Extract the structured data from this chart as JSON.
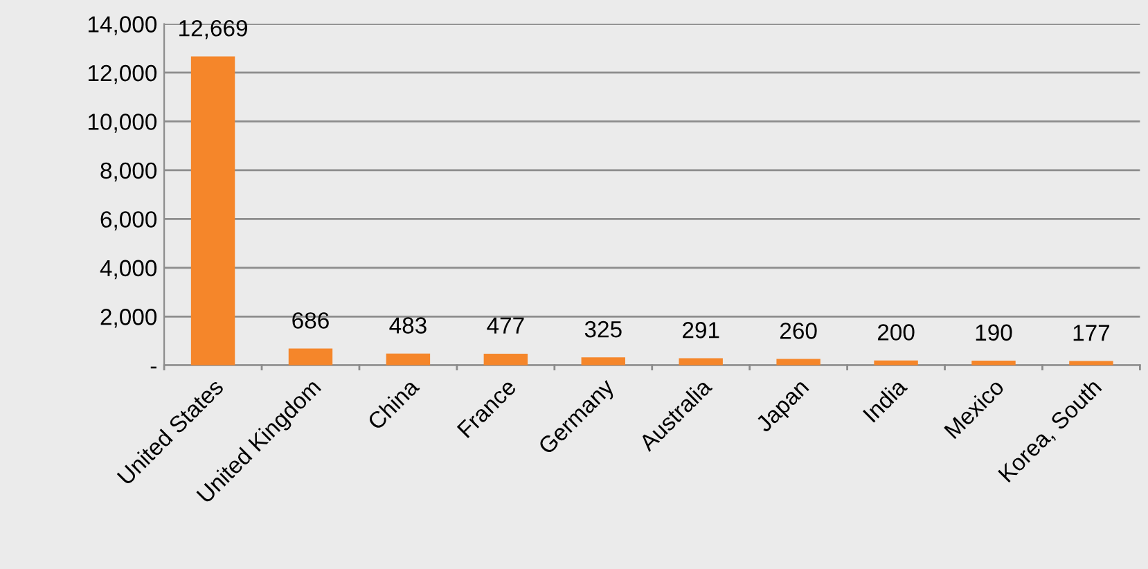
{
  "chart_data": {
    "type": "bar",
    "categories": [
      "United States",
      "United Kingdom",
      "China",
      "France",
      "Germany",
      "Australia",
      "Japan",
      "India",
      "Mexico",
      "Korea, South"
    ],
    "values": [
      12669,
      686,
      483,
      477,
      325,
      291,
      260,
      200,
      190,
      177
    ],
    "value_labels": [
      "12,669",
      "686",
      "483",
      "477",
      "325",
      "291",
      "260",
      "200",
      "190",
      "177"
    ],
    "color": "#f5862a",
    "ylim": [
      0,
      14000
    ],
    "yticks": [
      {
        "value": 0,
        "label": "-"
      },
      {
        "value": 2000,
        "label": "2,000"
      },
      {
        "value": 4000,
        "label": "4,000"
      },
      {
        "value": 6000,
        "label": "6,000"
      },
      {
        "value": 8000,
        "label": "8,000"
      },
      {
        "value": 10000,
        "label": "10,000"
      },
      {
        "value": 12000,
        "label": "12,000"
      },
      {
        "value": 14000,
        "label": "14,000"
      }
    ],
    "grid": "y",
    "legend": false
  }
}
